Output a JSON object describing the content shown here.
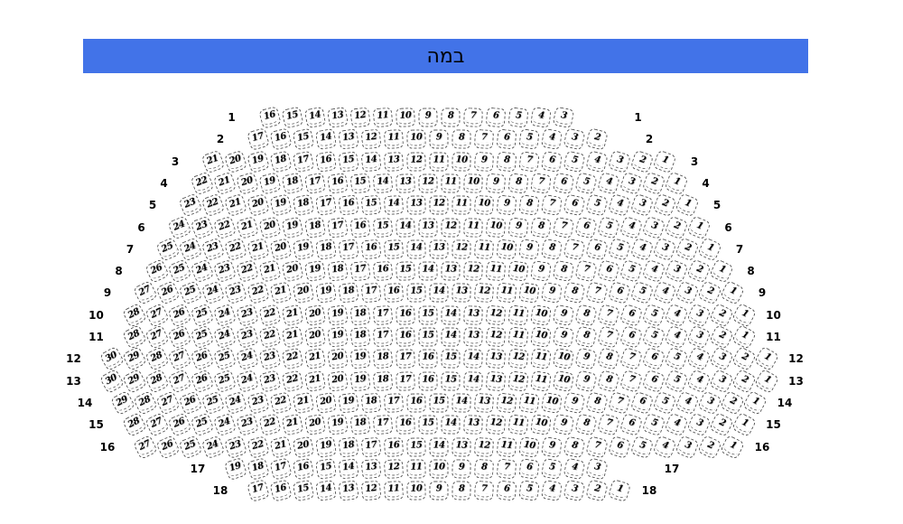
{
  "stage": {
    "label": "במה",
    "background_color": "#4273e8",
    "text_color": "#000000"
  },
  "colors": {
    "page_background": "#ffffff",
    "seat_fill": "#ffffff",
    "seat_border": "#575757",
    "seat_number_color": "#000000",
    "row_label_color": "#000000"
  },
  "seat_map": {
    "rows": [
      {
        "label": "1",
        "seats": [
          16,
          15,
          14,
          13,
          12,
          11,
          10,
          9,
          8,
          7,
          6,
          5,
          4,
          3
        ]
      },
      {
        "label": "2",
        "seats": [
          17,
          16,
          15,
          14,
          13,
          12,
          11,
          10,
          9,
          8,
          7,
          6,
          5,
          4,
          3,
          2
        ]
      },
      {
        "label": "3",
        "seats": [
          21,
          20,
          19,
          18,
          17,
          16,
          15,
          14,
          13,
          12,
          11,
          10,
          9,
          8,
          7,
          6,
          5,
          4,
          3,
          2,
          1
        ]
      },
      {
        "label": "4",
        "seats": [
          22,
          21,
          20,
          19,
          18,
          17,
          16,
          15,
          14,
          13,
          12,
          11,
          10,
          9,
          8,
          7,
          6,
          5,
          4,
          3,
          2,
          1
        ]
      },
      {
        "label": "5",
        "seats": [
          23,
          22,
          21,
          20,
          19,
          18,
          17,
          16,
          15,
          14,
          13,
          12,
          11,
          10,
          9,
          8,
          7,
          6,
          5,
          4,
          3,
          2,
          1
        ]
      },
      {
        "label": "6",
        "seats": [
          24,
          23,
          22,
          21,
          20,
          19,
          18,
          17,
          16,
          15,
          14,
          13,
          12,
          11,
          10,
          9,
          8,
          7,
          6,
          5,
          4,
          3,
          2,
          1
        ]
      },
      {
        "label": "7",
        "seats": [
          25,
          24,
          23,
          22,
          21,
          20,
          19,
          18,
          17,
          16,
          15,
          14,
          13,
          12,
          11,
          10,
          9,
          8,
          7,
          6,
          5,
          4,
          3,
          2,
          1
        ]
      },
      {
        "label": "8",
        "seats": [
          26,
          25,
          24,
          23,
          22,
          21,
          20,
          19,
          18,
          17,
          16,
          15,
          14,
          13,
          12,
          11,
          10,
          9,
          8,
          7,
          6,
          5,
          4,
          3,
          2,
          1
        ]
      },
      {
        "label": "9",
        "seats": [
          27,
          26,
          25,
          24,
          23,
          22,
          21,
          20,
          19,
          18,
          17,
          16,
          15,
          14,
          13,
          12,
          11,
          10,
          9,
          8,
          7,
          6,
          5,
          4,
          3,
          2,
          1
        ]
      },
      {
        "label": "10",
        "seats": [
          28,
          27,
          26,
          25,
          24,
          23,
          22,
          21,
          20,
          19,
          18,
          17,
          16,
          15,
          14,
          13,
          12,
          11,
          10,
          9,
          8,
          7,
          6,
          5,
          4,
          3,
          2,
          1
        ]
      },
      {
        "label": "11",
        "seats": [
          28,
          27,
          26,
          25,
          24,
          23,
          22,
          21,
          20,
          19,
          18,
          17,
          16,
          15,
          14,
          13,
          12,
          11,
          10,
          9,
          8,
          7,
          6,
          5,
          4,
          3,
          2,
          1
        ]
      },
      {
        "label": "12",
        "seats": [
          30,
          29,
          28,
          27,
          26,
          25,
          24,
          23,
          22,
          21,
          20,
          19,
          18,
          17,
          16,
          15,
          14,
          13,
          12,
          11,
          10,
          9,
          8,
          7,
          6,
          5,
          4,
          3,
          2,
          1
        ]
      },
      {
        "label": "13",
        "seats": [
          30,
          29,
          28,
          27,
          26,
          25,
          24,
          23,
          22,
          21,
          20,
          19,
          18,
          17,
          16,
          15,
          14,
          13,
          12,
          11,
          10,
          9,
          8,
          7,
          6,
          5,
          4,
          3,
          2,
          1
        ]
      },
      {
        "label": "14",
        "seats": [
          29,
          28,
          27,
          26,
          25,
          24,
          23,
          22,
          21,
          20,
          19,
          18,
          17,
          16,
          15,
          14,
          13,
          12,
          11,
          10,
          9,
          8,
          7,
          6,
          5,
          4,
          3,
          2,
          1
        ]
      },
      {
        "label": "15",
        "seats": [
          28,
          27,
          26,
          25,
          24,
          23,
          22,
          21,
          20,
          19,
          18,
          17,
          16,
          15,
          14,
          13,
          12,
          11,
          10,
          9,
          8,
          7,
          6,
          5,
          4,
          3,
          2,
          1
        ]
      },
      {
        "label": "16",
        "seats": [
          27,
          26,
          25,
          24,
          23,
          22,
          21,
          20,
          19,
          18,
          17,
          16,
          15,
          14,
          13,
          12,
          11,
          10,
          9,
          8,
          7,
          6,
          5,
          4,
          3,
          2,
          1
        ]
      },
      {
        "label": "17",
        "seats": [
          19,
          18,
          17,
          16,
          15,
          14,
          13,
          12,
          11,
          10,
          9,
          8,
          7,
          6,
          5,
          4,
          3
        ]
      },
      {
        "label": "18",
        "seats": [
          17,
          16,
          15,
          14,
          13,
          12,
          11,
          10,
          9,
          8,
          7,
          6,
          5,
          4,
          3,
          2,
          1
        ]
      }
    ]
  }
}
